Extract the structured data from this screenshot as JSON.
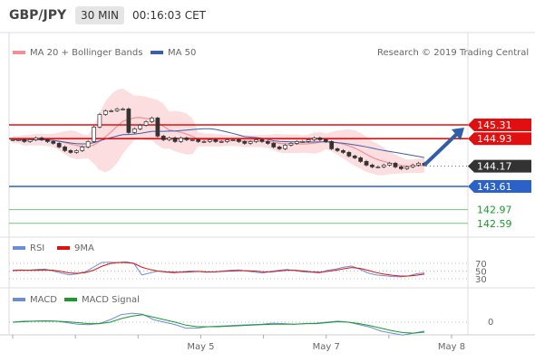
{
  "header": {
    "symbol": "GBP/JPY",
    "timeframe": "30 MIN",
    "time": "00:16:03 CET"
  },
  "legend": {
    "ma_bb": "MA 20 + Bollinger Bands",
    "ma50": "MA 50",
    "credit": "Research © 2019 Trading Central",
    "rsi": "RSI",
    "rsi_ma": "9MA",
    "macd": "MACD",
    "macd_signal": "MACD Signal"
  },
  "colors": {
    "red": "#e01010",
    "blue": "#2a62c8",
    "green": "#1a9a2a",
    "dark": "#333333",
    "bb_fill": "#fbd3d6",
    "ma50": "#3a5fa8"
  },
  "chart_data": [
    {
      "type": "candlestick",
      "title": "",
      "x": [
        "",
        "",
        "",
        "May 5",
        "",
        "May 7",
        "",
        "May 8"
      ],
      "ohlc_close": [
        144.9,
        144.9,
        144.85,
        144.9,
        144.95,
        144.9,
        144.85,
        144.8,
        144.7,
        144.6,
        144.55,
        144.6,
        144.7,
        144.85,
        145.25,
        145.6,
        145.7,
        145.7,
        145.75,
        145.75,
        145.1,
        145.2,
        145.3,
        145.4,
        145.5,
        145.0,
        144.9,
        144.95,
        144.85,
        144.95,
        144.9,
        144.9,
        144.85,
        144.85,
        144.9,
        144.85,
        144.85,
        144.9,
        144.9,
        144.85,
        144.8,
        144.85,
        144.9,
        144.85,
        144.8,
        144.7,
        144.65,
        144.75,
        144.8,
        144.85,
        144.85,
        144.9,
        144.95,
        144.9,
        144.85,
        144.65,
        144.6,
        144.55,
        144.45,
        144.4,
        144.3,
        144.2,
        144.15,
        144.15,
        144.2,
        144.25,
        144.15,
        144.1,
        144.15,
        144.2,
        144.25,
        144.2
      ],
      "price_ticks": [
        "145.31",
        "144.93",
        "144.17",
        "143.61",
        "142.97",
        "142.59"
      ],
      "levels": [
        {
          "label": "145.31",
          "value": 145.31,
          "style": "resistance"
        },
        {
          "label": "144.93",
          "value": 144.93,
          "style": "pivot"
        },
        {
          "label": "144.17",
          "value": 144.17,
          "style": "last"
        },
        {
          "label": "143.61",
          "value": 143.61,
          "style": "support"
        },
        {
          "label": "142.97",
          "value": 142.97,
          "style": "target"
        },
        {
          "label": "142.59",
          "value": 142.59,
          "style": "target"
        }
      ]
    },
    {
      "type": "line",
      "title": "RSI",
      "yticks": [
        "70",
        "50",
        "30"
      ],
      "series": [
        {
          "name": "RSI",
          "values": [
            52,
            53,
            52,
            54,
            55,
            50,
            45,
            40,
            43,
            48,
            60,
            72,
            73,
            72,
            74,
            70,
            40,
            45,
            50,
            47,
            45,
            48,
            50,
            49,
            47,
            48,
            50,
            52,
            53,
            50,
            47,
            45,
            49,
            52,
            54,
            51,
            48,
            47,
            45,
            52,
            55,
            60,
            63,
            55,
            45,
            40,
            38,
            36,
            35,
            37,
            43,
            45
          ]
        },
        {
          "name": "9MA",
          "values": [
            51,
            52,
            52,
            52,
            53,
            52,
            49,
            45,
            44,
            46,
            52,
            62,
            69,
            72,
            72,
            70,
            60,
            54,
            50,
            48,
            47,
            47,
            48,
            49,
            48,
            48,
            49,
            50,
            51,
            51,
            50,
            48,
            48,
            50,
            52,
            52,
            50,
            48,
            47,
            49,
            52,
            56,
            59,
            57,
            52,
            46,
            42,
            39,
            37,
            37,
            39,
            42
          ]
        }
      ]
    },
    {
      "type": "line",
      "title": "MACD",
      "yticks": [
        "0"
      ],
      "series": [
        {
          "name": "MACD",
          "values": [
            0.0,
            0.02,
            0.02,
            0.03,
            0.02,
            -0.01,
            -0.04,
            -0.05,
            -0.03,
            0.05,
            0.15,
            0.18,
            0.16,
            0.05,
            0.0,
            -0.05,
            -0.12,
            -0.12,
            -0.09,
            -0.08,
            -0.07,
            -0.06,
            -0.05,
            -0.04,
            -0.02,
            -0.03,
            -0.04,
            -0.03,
            -0.02,
            0.0,
            0.02,
            0.0,
            -0.05,
            -0.1,
            -0.18,
            -0.22,
            -0.26,
            -0.22,
            -0.18
          ]
        },
        {
          "name": "MACD Signal",
          "values": [
            0.0,
            0.01,
            0.02,
            0.02,
            0.02,
            0.01,
            -0.01,
            -0.03,
            -0.03,
            0.0,
            0.07,
            0.12,
            0.15,
            0.1,
            0.05,
            0.0,
            -0.06,
            -0.09,
            -0.09,
            -0.09,
            -0.08,
            -0.07,
            -0.06,
            -0.05,
            -0.04,
            -0.04,
            -0.04,
            -0.03,
            -0.03,
            -0.01,
            0.01,
            0.0,
            -0.03,
            -0.07,
            -0.12,
            -0.17,
            -0.21,
            -0.22,
            -0.2
          ]
        }
      ]
    }
  ]
}
